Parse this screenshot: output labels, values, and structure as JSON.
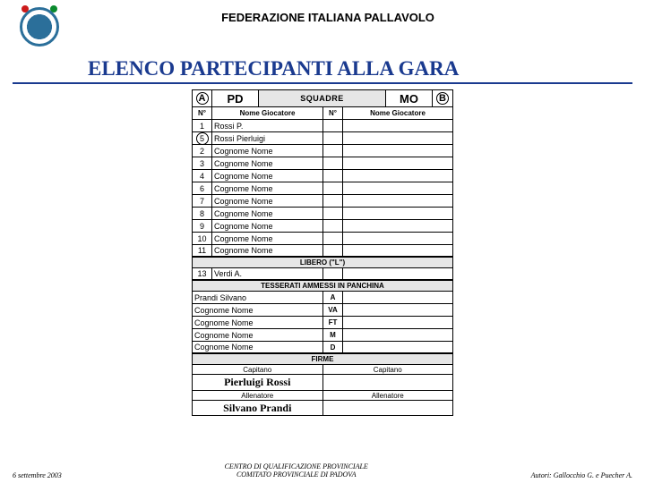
{
  "header": {
    "federation": "FEDERAZIONE ITALIANA PALLAVOLO",
    "title": "ELENCO PARTECIPANTI ALLA GARA"
  },
  "form": {
    "teamA_letter": "A",
    "teamA_code": "PD",
    "squadre_label": "SQUADRE",
    "teamB_code": "MO",
    "teamB_letter": "B",
    "sub_num": "N°",
    "sub_name": "Nome Giocatore",
    "players": [
      {
        "num": "1",
        "name": "Rossi P.",
        "circled": false
      },
      {
        "num": "5",
        "name": "Rossi Pierluigi",
        "circled": true
      },
      {
        "num": "2",
        "name": "Cognome Nome",
        "circled": false
      },
      {
        "num": "3",
        "name": "Cognome Nome",
        "circled": false
      },
      {
        "num": "4",
        "name": "Cognome Nome",
        "circled": false
      },
      {
        "num": "6",
        "name": "Cognome Nome",
        "circled": false
      },
      {
        "num": "7",
        "name": "Cognome Nome",
        "circled": false
      },
      {
        "num": "8",
        "name": "Cognome Nome",
        "circled": false
      },
      {
        "num": "9",
        "name": "Cognome Nome",
        "circled": false
      },
      {
        "num": "10",
        "name": "Cognome Nome",
        "circled": false
      },
      {
        "num": "11",
        "name": "Cognome Nome",
        "circled": false
      }
    ],
    "libero_banner": "LIBERO (\"L\")",
    "libero": [
      {
        "num": "13",
        "name": "Verdi A."
      }
    ],
    "tess_banner": "TESSERATI AMMESSI IN PANCHINA",
    "tesserati": [
      {
        "name": "Prandi Silvano",
        "role": "A"
      },
      {
        "name": "Cognome Nome",
        "role": "VA"
      },
      {
        "name": "Cognome Nome",
        "role": "FT"
      },
      {
        "name": "Cognome Nome",
        "role": "M"
      },
      {
        "name": "Cognome Nome",
        "role": "D"
      }
    ],
    "firme_banner": "FIRME",
    "captain_label": "Capitano",
    "coach_label": "Allenatore",
    "captain_sign": "Pierluigi Rossi",
    "coach_sign": "Silvano Prandi"
  },
  "footer": {
    "date": "6 settembre 2003",
    "center1": "CENTRO DI QUALIFICAZIONE PROVINCIALE",
    "center2": "COMITATO PROVINCIALE DI PADOVA",
    "authors": "Autori: Gallocchio G. e Puecher A."
  },
  "colors": {
    "primary_blue": "#1a3a8f",
    "logo_blue": "#2b6f9a",
    "grey": "#e6e6e6"
  }
}
